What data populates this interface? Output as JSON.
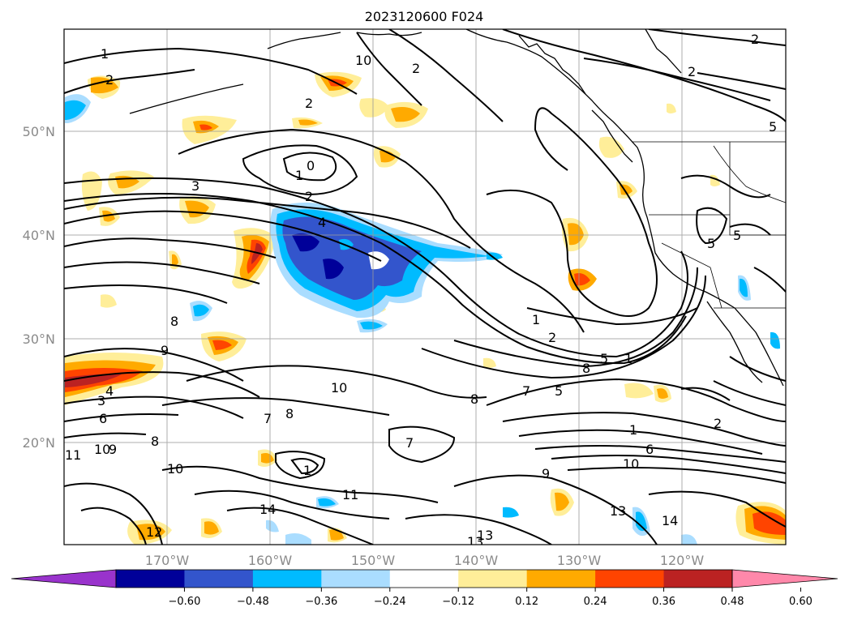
{
  "title": "2023120600 F024",
  "lat_labels": [
    "50°N",
    "40°N",
    "30°N",
    "20°N"
  ],
  "lon_labels": [
    "170°W",
    "160°W",
    "150°W",
    "140°W",
    "130°W",
    "120°W"
  ],
  "colorbar": {
    "ticks": [
      "−0.60",
      "−0.48",
      "−0.36",
      "−0.24",
      "−0.12",
      "0.12",
      "0.24",
      "0.36",
      "0.48",
      "0.60"
    ],
    "colors": [
      "#9933cc",
      "#000099",
      "#3355cc",
      "#00bbff",
      "#aaddff",
      "#ffffff",
      "#ffee99",
      "#ffaa00",
      "#ff4400",
      "#bb2222",
      "#ff88aa"
    ]
  },
  "contour_labels": [
    "1",
    "2",
    "2",
    "2",
    "10",
    "0",
    "3",
    "2",
    "4",
    "1",
    "2",
    "8",
    "9",
    "4",
    "3",
    "6",
    "7",
    "8",
    "10",
    "8",
    "7",
    "11",
    "10",
    "9",
    "8",
    "10",
    "1",
    "11",
    "14",
    "12",
    "13",
    "13",
    "9",
    "1",
    "2",
    "5",
    "7",
    "8",
    "5",
    "1",
    "1",
    "2",
    "6",
    "10",
    "13",
    "14",
    "5",
    "5",
    "5",
    "2"
  ],
  "shading_colors": {
    "light_yellow": "#ffee99",
    "orange": "#ffaa00",
    "red": "#ff4400",
    "dark_red": "#bb2222",
    "light_blue": "#aaddff",
    "cyan": "#00bbff",
    "blue": "#3355cc",
    "navy": "#000099"
  }
}
